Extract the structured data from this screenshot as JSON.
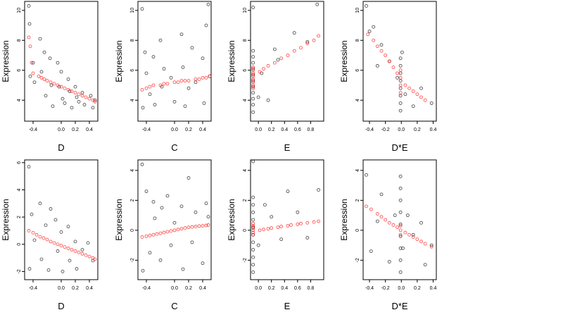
{
  "chart_data": [
    {
      "type": "scatter",
      "xlabel": "D",
      "ylabel": "Expression",
      "xlim": [
        -0.52,
        0.52
      ],
      "ylim": [
        2.6,
        10.6
      ],
      "xticks": [
        {
          "v": -0.4,
          "t": "-0.4"
        },
        {
          "v": 0.0,
          "t": "0.0"
        },
        {
          "v": 0.2,
          "t": "0.2"
        },
        {
          "v": 0.4,
          "t": "0.4"
        }
      ],
      "yticks": [
        {
          "v": 4,
          "t": "4"
        },
        {
          "v": 6,
          "t": "6"
        },
        {
          "v": 8,
          "t": "8"
        },
        {
          "v": 10,
          "t": "10"
        }
      ],
      "series": [
        {
          "color": "#000000",
          "x": [
            -0.46,
            -0.45,
            -0.44,
            -0.4,
            -0.38,
            -0.3,
            -0.28,
            -0.24,
            -0.22,
            -0.16,
            -0.14,
            -0.12,
            -0.05,
            -0.03,
            0.0,
            0.02,
            0.05,
            0.1,
            0.12,
            0.15,
            0.2,
            0.22,
            0.25,
            0.3,
            0.33,
            0.42,
            0.45,
            0.48
          ],
          "y": [
            10.3,
            9.1,
            5.6,
            6.5,
            5.2,
            8.1,
            5.9,
            7.2,
            4.3,
            6.8,
            5.0,
            3.6,
            6.5,
            4.9,
            5.9,
            4.1,
            3.8,
            5.4,
            4.6,
            3.5,
            4.9,
            4.2,
            3.9,
            4.5,
            3.7,
            4.3,
            3.5,
            4.0
          ]
        },
        {
          "color": "#ff0000",
          "x": [
            -0.46,
            -0.44,
            -0.42,
            -0.4,
            -0.32,
            -0.28,
            -0.24,
            -0.2,
            -0.15,
            -0.1,
            -0.05,
            0.0,
            0.05,
            0.1,
            0.15,
            0.2,
            0.25,
            0.3,
            0.35,
            0.4,
            0.45,
            0.48
          ],
          "y": [
            8.2,
            7.6,
            6.5,
            5.8,
            5.6,
            5.5,
            5.4,
            5.3,
            5.2,
            5.1,
            5.0,
            4.9,
            4.8,
            4.7,
            4.6,
            4.5,
            4.4,
            4.3,
            4.2,
            4.1,
            4.0,
            3.9
          ]
        }
      ]
    },
    {
      "type": "scatter",
      "xlabel": "C",
      "ylabel": "Expression",
      "xlim": [
        -0.52,
        0.52
      ],
      "ylim": [
        2.6,
        10.6
      ],
      "xticks": [
        {
          "v": -0.4,
          "t": "-0.4"
        },
        {
          "v": 0.0,
          "t": "0.0"
        },
        {
          "v": 0.2,
          "t": "0.2"
        },
        {
          "v": 0.4,
          "t": "0.4"
        }
      ],
      "yticks": [
        {
          "v": 4,
          "t": "4"
        },
        {
          "v": 6,
          "t": "6"
        },
        {
          "v": 8,
          "t": "8"
        },
        {
          "v": 10,
          "t": "10"
        }
      ],
      "series": [
        {
          "color": "#000000",
          "x": [
            -0.46,
            -0.45,
            -0.42,
            -0.4,
            -0.35,
            -0.3,
            -0.28,
            -0.2,
            -0.18,
            -0.15,
            -0.05,
            0.0,
            0.1,
            0.12,
            0.15,
            0.2,
            0.25,
            0.3,
            0.4,
            0.42,
            0.45,
            0.48,
            0.5
          ],
          "y": [
            10.1,
            3.5,
            7.2,
            5.8,
            4.4,
            6.9,
            3.7,
            8.0,
            4.9,
            6.1,
            5.5,
            3.9,
            8.4,
            6.2,
            3.6,
            4.8,
            7.5,
            5.2,
            6.8,
            3.8,
            9.0,
            10.4,
            5.6
          ]
        },
        {
          "color": "#ff0000",
          "x": [
            -0.46,
            -0.4,
            -0.35,
            -0.3,
            -0.2,
            -0.15,
            -0.1,
            0.0,
            0.05,
            0.1,
            0.15,
            0.2,
            0.3,
            0.35,
            0.4,
            0.45,
            0.5
          ],
          "y": [
            4.7,
            4.8,
            4.9,
            5.0,
            5.0,
            5.1,
            5.1,
            5.2,
            5.2,
            5.3,
            5.3,
            5.3,
            5.4,
            5.4,
            5.5,
            5.5,
            5.6
          ]
        }
      ]
    },
    {
      "type": "scatter",
      "xlabel": "E",
      "ylabel": "Expression",
      "xlim": [
        -0.12,
        1.0
      ],
      "ylim": [
        2.6,
        10.6
      ],
      "xticks": [
        {
          "v": 0.0,
          "t": "0.0"
        },
        {
          "v": 0.2,
          "t": "0.2"
        },
        {
          "v": 0.4,
          "t": "0.4"
        },
        {
          "v": 0.6,
          "t": "0.6"
        },
        {
          "v": 0.8,
          "t": "0.8"
        }
      ],
      "yticks": [
        {
          "v": 4,
          "t": "4"
        },
        {
          "v": 6,
          "t": "6"
        },
        {
          "v": 8,
          "t": "8"
        },
        {
          "v": 10,
          "t": "10"
        }
      ],
      "series": [
        {
          "color": "#000000",
          "x": [
            -0.08,
            -0.08,
            -0.08,
            -0.08,
            -0.08,
            -0.08,
            -0.08,
            -0.08,
            -0.08,
            -0.08,
            -0.08,
            -0.08,
            0.0,
            0.05,
            0.15,
            0.25,
            0.3,
            0.55,
            0.75,
            0.9
          ],
          "y": [
            3.2,
            3.7,
            4.1,
            4.5,
            4.9,
            5.3,
            5.7,
            6.1,
            6.5,
            6.9,
            7.3,
            10.2,
            4.2,
            5.8,
            4.0,
            7.4,
            6.7,
            8.5,
            7.9,
            10.4
          ]
        },
        {
          "color": "#ff0000",
          "x": [
            -0.08,
            -0.08,
            -0.08,
            -0.08,
            -0.08,
            -0.08,
            -0.08,
            -0.08,
            0.02,
            0.08,
            0.15,
            0.25,
            0.35,
            0.45,
            0.55,
            0.65,
            0.75,
            0.85,
            0.92
          ],
          "y": [
            4.8,
            5.0,
            5.2,
            5.4,
            5.6,
            5.8,
            6.0,
            6.2,
            5.9,
            6.1,
            6.3,
            6.5,
            6.8,
            7.0,
            7.3,
            7.5,
            7.8,
            8.0,
            8.3
          ]
        }
      ]
    },
    {
      "type": "scatter",
      "xlabel": "D*E",
      "ylabel": "Expression",
      "xlim": [
        -0.48,
        0.44
      ],
      "ylim": [
        2.6,
        10.6
      ],
      "xticks": [
        {
          "v": -0.4,
          "t": "-0.4"
        },
        {
          "v": -0.2,
          "t": "-0.2"
        },
        {
          "v": 0.0,
          "t": "0.0"
        },
        {
          "v": 0.2,
          "t": "0.2"
        },
        {
          "v": 0.4,
          "t": "0.4"
        }
      ],
      "yticks": [
        {
          "v": 4,
          "t": "4"
        },
        {
          "v": 6,
          "t": "6"
        },
        {
          "v": 8,
          "t": "8"
        },
        {
          "v": 10,
          "t": "10"
        }
      ],
      "series": [
        {
          "color": "#000000",
          "x": [
            -0.44,
            -0.4,
            -0.35,
            -0.3,
            -0.25,
            -0.15,
            -0.05,
            -0.01,
            -0.01,
            -0.01,
            -0.01,
            -0.01,
            -0.01,
            -0.01,
            -0.01,
            0.01,
            0.05,
            0.15,
            0.25,
            0.38
          ],
          "y": [
            10.3,
            8.6,
            8.9,
            6.3,
            7.7,
            6.6,
            5.5,
            3.3,
            3.8,
            4.3,
            4.8,
            5.3,
            5.8,
            6.3,
            6.8,
            7.2,
            4.4,
            3.6,
            4.8,
            3.8
          ]
        },
        {
          "color": "#ff0000",
          "x": [
            -0.42,
            -0.35,
            -0.3,
            -0.25,
            -0.2,
            -0.15,
            -0.1,
            -0.05,
            -0.01,
            -0.01,
            -0.01,
            -0.01,
            0.05,
            0.1,
            0.15,
            0.2,
            0.25,
            0.3
          ],
          "y": [
            8.4,
            8.0,
            7.6,
            7.3,
            7.0,
            6.6,
            6.2,
            5.8,
            4.5,
            5.0,
            5.5,
            6.0,
            5.0,
            4.8,
            4.6,
            4.4,
            4.2,
            4.0
          ]
        }
      ]
    },
    {
      "type": "scatter",
      "xlabel": "D",
      "ylabel": "Expression",
      "xlim": [
        -0.52,
        0.52
      ],
      "ylim": [
        -2.6,
        6.2
      ],
      "xticks": [
        {
          "v": -0.4,
          "t": "-0.4"
        },
        {
          "v": 0.0,
          "t": "0.0"
        },
        {
          "v": 0.2,
          "t": "0.2"
        },
        {
          "v": 0.4,
          "t": "0.4"
        }
      ],
      "yticks": [
        {
          "v": -2,
          "t": "-2"
        },
        {
          "v": 0,
          "t": "0"
        },
        {
          "v": 2,
          "t": "2"
        },
        {
          "v": 4,
          "t": "4"
        },
        {
          "v": 6,
          "t": "6"
        }
      ],
      "series": [
        {
          "color": "#000000",
          "x": [
            -0.46,
            -0.45,
            -0.42,
            -0.38,
            -0.3,
            -0.28,
            -0.22,
            -0.18,
            -0.15,
            -0.08,
            -0.05,
            0.0,
            0.02,
            0.1,
            0.12,
            0.2,
            0.22,
            0.3,
            0.38,
            0.45
          ],
          "y": [
            5.7,
            -1.8,
            2.2,
            0.3,
            3.0,
            -1.1,
            1.4,
            -1.9,
            2.6,
            1.8,
            -0.5,
            0.9,
            -2.0,
            1.3,
            -1.2,
            0.2,
            -1.8,
            -0.4,
            0.1,
            -1.2
          ]
        },
        {
          "color": "#ff0000",
          "x": [
            -0.46,
            -0.4,
            -0.35,
            -0.3,
            -0.25,
            -0.2,
            -0.15,
            -0.1,
            -0.05,
            0.0,
            0.05,
            0.1,
            0.15,
            0.2,
            0.25,
            0.3,
            0.35,
            0.4,
            0.45,
            0.48
          ],
          "y": [
            1.0,
            0.85,
            0.7,
            0.55,
            0.45,
            0.35,
            0.2,
            0.1,
            0.0,
            -0.1,
            -0.2,
            -0.3,
            -0.4,
            -0.5,
            -0.6,
            -0.7,
            -0.8,
            -0.9,
            -1.0,
            -1.1
          ]
        }
      ]
    },
    {
      "type": "scatter",
      "xlabel": "C",
      "ylabel": "Expression",
      "xlim": [
        -0.52,
        0.52
      ],
      "ylim": [
        -3.3,
        4.7
      ],
      "xticks": [
        {
          "v": -0.4,
          "t": "-0.4"
        },
        {
          "v": 0.0,
          "t": "0.0"
        },
        {
          "v": 0.2,
          "t": "0.2"
        },
        {
          "v": 0.4,
          "t": "0.4"
        }
      ],
      "yticks": [
        {
          "v": -2,
          "t": "-2"
        },
        {
          "v": 0,
          "t": "0"
        },
        {
          "v": 2,
          "t": "2"
        },
        {
          "v": 4,
          "t": "4"
        }
      ],
      "series": [
        {
          "color": "#000000",
          "x": [
            -0.46,
            -0.45,
            -0.4,
            -0.35,
            -0.3,
            -0.28,
            -0.2,
            -0.18,
            -0.1,
            -0.05,
            0.0,
            0.1,
            0.12,
            0.2,
            0.25,
            0.3,
            0.4,
            0.45,
            0.48
          ],
          "y": [
            4.4,
            -2.7,
            2.6,
            -1.5,
            1.9,
            0.8,
            -2.0,
            1.5,
            2.3,
            -1.0,
            0.5,
            1.6,
            -2.6,
            3.5,
            -0.8,
            1.2,
            -2.2,
            1.8,
            0.9
          ]
        },
        {
          "color": "#ff0000",
          "x": [
            -0.46,
            -0.4,
            -0.35,
            -0.3,
            -0.25,
            -0.2,
            -0.15,
            -0.1,
            -0.05,
            0.0,
            0.05,
            0.1,
            0.15,
            0.2,
            0.25,
            0.3,
            0.35,
            0.4,
            0.45,
            0.48
          ],
          "y": [
            -0.45,
            -0.4,
            -0.35,
            -0.3,
            -0.25,
            -0.2,
            -0.15,
            -0.1,
            -0.05,
            0.0,
            0.05,
            0.1,
            0.15,
            0.2,
            0.22,
            0.25,
            0.28,
            0.3,
            0.32,
            0.35
          ]
        }
      ]
    },
    {
      "type": "scatter",
      "xlabel": "E",
      "ylabel": "Expression",
      "xlim": [
        -0.12,
        1.0
      ],
      "ylim": [
        -3.3,
        4.7
      ],
      "xticks": [
        {
          "v": 0.0,
          "t": "0.0"
        },
        {
          "v": 0.2,
          "t": "0.2"
        },
        {
          "v": 0.4,
          "t": "0.4"
        },
        {
          "v": 0.6,
          "t": "0.6"
        },
        {
          "v": 0.8,
          "t": "0.8"
        }
      ],
      "yticks": [
        {
          "v": -2,
          "t": "-2"
        },
        {
          "v": 0,
          "t": "0"
        },
        {
          "v": 2,
          "t": "2"
        },
        {
          "v": 4,
          "t": "4"
        }
      ],
      "series": [
        {
          "color": "#000000",
          "x": [
            -0.08,
            -0.08,
            -0.08,
            -0.08,
            -0.08,
            -0.08,
            -0.08,
            -0.08,
            -0.08,
            -0.08,
            -0.08,
            -0.08,
            0.0,
            0.1,
            0.2,
            0.35,
            0.45,
            0.6,
            0.75,
            0.92
          ],
          "y": [
            -2.8,
            -2.3,
            -1.8,
            -1.3,
            -0.8,
            -0.3,
            0.2,
            0.7,
            1.2,
            1.7,
            2.2,
            4.6,
            -1.0,
            1.7,
            0.9,
            -0.6,
            2.6,
            1.2,
            -0.5,
            2.7
          ]
        },
        {
          "color": "#ff0000",
          "x": [
            -0.08,
            -0.08,
            -0.08,
            -0.08,
            -0.08,
            -0.08,
            0.02,
            0.08,
            0.15,
            0.2,
            0.3,
            0.35,
            0.45,
            0.5,
            0.6,
            0.65,
            0.75,
            0.85,
            0.92
          ],
          "y": [
            -0.3,
            -0.15,
            0.0,
            0.15,
            0.3,
            0.45,
            0.0,
            0.05,
            0.1,
            0.15,
            0.2,
            0.25,
            0.3,
            0.35,
            0.4,
            0.45,
            0.5,
            0.55,
            0.6
          ]
        }
      ]
    },
    {
      "type": "scatter",
      "xlabel": "D*E",
      "ylabel": "Expression",
      "xlim": [
        -0.48,
        0.44
      ],
      "ylim": [
        -3.3,
        4.7
      ],
      "xticks": [
        {
          "v": -0.4,
          "t": "-0.4"
        },
        {
          "v": -0.2,
          "t": "-0.2"
        },
        {
          "v": 0.0,
          "t": "0.0"
        },
        {
          "v": 0.2,
          "t": "0.2"
        },
        {
          "v": 0.4,
          "t": "0.4"
        }
      ],
      "yticks": [
        {
          "v": -2,
          "t": "-2"
        },
        {
          "v": 0,
          "t": "0"
        },
        {
          "v": 2,
          "t": "2"
        },
        {
          "v": 4,
          "t": "4"
        }
      ],
      "series": [
        {
          "color": "#000000",
          "x": [
            -0.44,
            -0.38,
            -0.3,
            -0.25,
            -0.15,
            -0.08,
            -0.01,
            -0.01,
            -0.01,
            -0.01,
            -0.01,
            -0.01,
            -0.01,
            -0.01,
            -0.01,
            0.02,
            0.08,
            0.15,
            0.25,
            0.3,
            0.38
          ],
          "y": [
            3.7,
            -1.4,
            0.6,
            2.4,
            -2.1,
            1.0,
            -2.8,
            -2.0,
            -1.2,
            -0.4,
            0.4,
            1.2,
            2.0,
            2.8,
            3.6,
            -1.2,
            1.0,
            -0.3,
            0.5,
            -2.3,
            -1.0
          ]
        },
        {
          "color": "#ff0000",
          "x": [
            -0.44,
            -0.38,
            -0.3,
            -0.25,
            -0.2,
            -0.15,
            -0.1,
            -0.05,
            -0.01,
            -0.01,
            -0.01,
            0.05,
            0.1,
            0.15,
            0.2,
            0.25,
            0.3,
            0.38
          ],
          "y": [
            1.6,
            1.4,
            1.1,
            0.9,
            0.7,
            0.5,
            0.35,
            0.2,
            -0.3,
            0.0,
            0.3,
            -0.15,
            -0.3,
            -0.45,
            -0.6,
            -0.75,
            -0.9,
            -1.1
          ]
        }
      ]
    }
  ]
}
